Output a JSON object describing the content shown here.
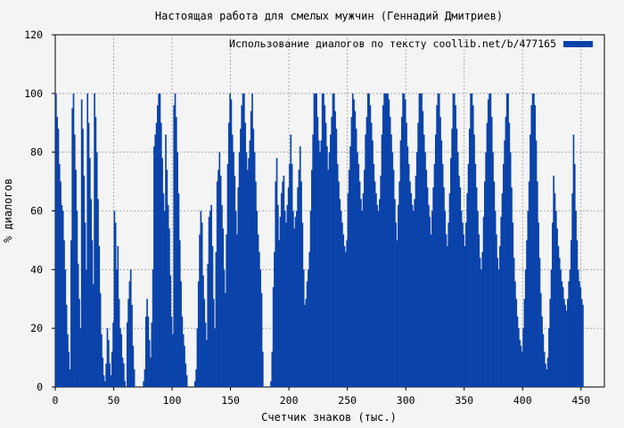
{
  "chart_data": {
    "type": "bar",
    "title": "Настоящая работа для смелых мужчин (Геннадий Дмитриев)",
    "xlabel": "Счетчик знаков (тыс.)",
    "ylabel": "% диалогов",
    "xlim": [
      0,
      470
    ],
    "ylim": [
      0,
      120
    ],
    "x_ticks": [
      0,
      50,
      100,
      150,
      200,
      250,
      300,
      350,
      400,
      450
    ],
    "y_ticks": [
      0,
      20,
      40,
      60,
      80,
      100,
      120
    ],
    "grid": true,
    "legend_position": "top-right",
    "series": [
      {
        "name": "Использование диалогов по тексту  coollib.net/b/477165",
        "color": "#0a43aa",
        "bin_width": 1,
        "values": [
          100,
          92,
          88,
          76,
          70,
          62,
          60,
          50,
          40,
          28,
          18,
          12,
          6,
          50,
          95,
          100,
          86,
          74,
          60,
          42,
          30,
          20,
          98,
          88,
          72,
          56,
          40,
          100,
          90,
          78,
          64,
          50,
          35,
          100,
          92,
          80,
          64,
          48,
          32,
          18,
          10,
          4,
          2,
          8,
          20,
          16,
          8,
          4,
          12,
          22,
          60,
          56,
          40,
          48,
          30,
          20,
          18,
          10,
          8,
          2,
          0,
          22,
          30,
          36,
          40,
          28,
          14,
          6,
          0,
          0,
          0,
          0,
          0,
          0,
          0,
          2,
          6,
          24,
          30,
          24,
          16,
          10,
          22,
          40,
          82,
          86,
          90,
          96,
          100,
          100,
          90,
          78,
          66,
          60,
          86,
          74,
          62,
          54,
          38,
          24,
          18,
          96,
          100,
          92,
          80,
          66,
          50,
          36,
          24,
          18,
          14,
          8,
          4,
          0,
          0,
          0,
          0,
          0,
          0,
          2,
          6,
          20,
          36,
          52,
          60,
          56,
          38,
          30,
          22,
          16,
          42,
          58,
          60,
          62,
          48,
          30,
          20,
          46,
          70,
          74,
          80,
          72,
          62,
          54,
          40,
          32,
          52,
          76,
          90,
          100,
          98,
          86,
          80,
          72,
          60,
          52,
          68,
          80,
          88,
          96,
          100,
          100,
          90,
          80,
          74,
          78,
          84,
          94,
          100,
          88,
          80,
          70,
          60,
          52,
          46,
          40,
          32,
          12,
          0,
          0,
          0,
          0,
          0,
          0,
          2,
          12,
          34,
          46,
          70,
          78,
          62,
          50,
          58,
          66,
          70,
          72,
          60,
          56,
          62,
          68,
          76,
          86,
          76,
          60,
          54,
          58,
          60,
          68,
          74,
          82,
          70,
          56,
          40,
          28,
          30,
          36,
          40,
          46,
          60,
          74,
          86,
          100,
          100,
          100,
          92,
          84,
          80,
          84,
          100,
          100,
          96,
          90,
          82,
          74,
          80,
          86,
          92,
          100,
          100,
          94,
          88,
          76,
          70,
          64,
          60,
          56,
          52,
          48,
          46,
          50,
          66,
          74,
          82,
          92,
          100,
          98,
          94,
          88,
          80,
          76,
          70,
          64,
          60,
          66,
          74,
          86,
          92,
          100,
          100,
          96,
          90,
          84,
          76,
          70,
          66,
          62,
          60,
          64,
          72,
          86,
          96,
          100,
          100,
          100,
          100,
          98,
          92,
          86,
          80,
          74,
          64,
          56,
          50,
          62,
          70,
          84,
          92,
          100,
          100,
          98,
          90,
          82,
          76,
          70,
          66,
          62,
          60,
          64,
          72,
          80,
          90,
          100,
          100,
          100,
          94,
          86,
          80,
          74,
          68,
          62,
          58,
          52,
          60,
          68,
          76,
          86,
          96,
          100,
          100,
          92,
          84,
          76,
          68,
          60,
          52,
          48,
          56,
          66,
          78,
          88,
          100,
          100,
          96,
          88,
          80,
          72,
          68,
          60,
          56,
          52,
          48,
          56,
          66,
          76,
          88,
          100,
          100,
          96,
          86,
          76,
          68,
          60,
          52,
          44,
          40,
          46,
          58,
          70,
          80,
          90,
          98,
          100,
          100,
          92,
          80,
          70,
          60,
          52,
          44,
          40,
          48,
          58,
          66,
          76,
          84,
          92,
          100,
          100,
          90,
          80,
          68,
          56,
          44,
          36,
          30,
          24,
          20,
          16,
          14,
          12,
          20,
          30,
          40,
          50,
          60,
          70,
          86,
          96,
          100,
          100,
          96,
          84,
          70,
          56,
          44,
          32,
          24,
          18,
          12,
          8,
          6,
          10,
          20,
          30,
          40,
          56,
          72,
          66,
          60,
          54,
          48,
          44,
          40,
          36,
          34,
          30,
          28,
          26,
          30,
          36,
          40,
          50,
          66,
          86,
          76,
          60,
          50,
          40,
          36,
          34,
          30,
          28
        ]
      }
    ]
  }
}
